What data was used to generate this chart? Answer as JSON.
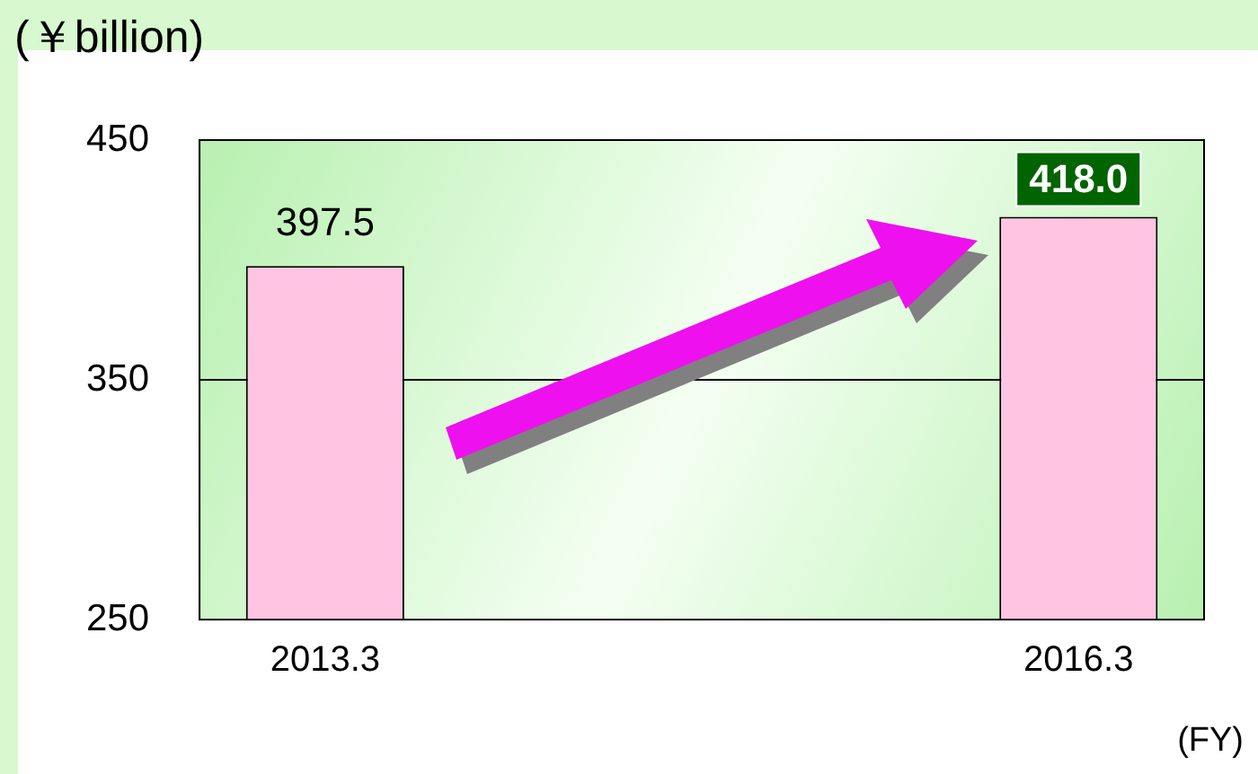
{
  "chart_data": {
    "type": "bar",
    "ylabel": "(￥billion)",
    "xlabel": "(FY)",
    "categories": [
      "2013.3",
      null,
      null,
      "2016.3"
    ],
    "values": [
      397.5,
      null,
      null,
      418.0
    ],
    "value_labels": [
      "397.5",
      null,
      null,
      "418.0"
    ],
    "color": "#ffc4e2",
    "ylim": [
      250,
      450
    ],
    "yticks": [
      250,
      350,
      450
    ],
    "grid": "y",
    "legend": false
  }
}
